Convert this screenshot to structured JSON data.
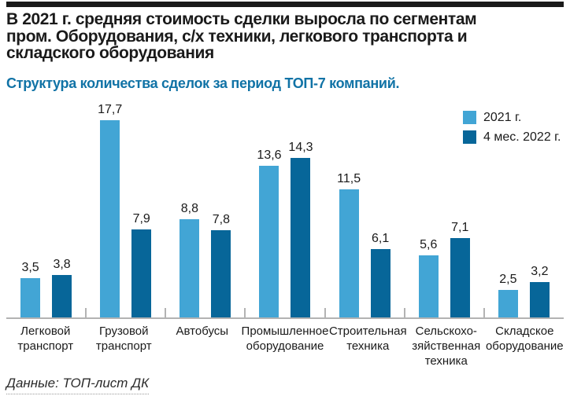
{
  "header": {
    "title_lines": [
      "В 2021 г. средняя стоимость сделки выросла по сегментам",
      "пром. Оборудования, с/х техники, легкового транспорта и",
      "складского оборудования"
    ],
    "subtitle": "Структура количества сделок за период ТОП-7 компаний."
  },
  "legend": {
    "items": [
      {
        "label": "2021 г.",
        "color": "#42a5d5"
      },
      {
        "label": "4 мес. 2022 г.",
        "color": "#076699"
      }
    ]
  },
  "footer": {
    "source": "Данные: ТОП-лист ДК"
  },
  "colors": {
    "series_2021": "#42a5d5",
    "series_2022": "#076699",
    "subtitle_accent": "#1173a6",
    "axis": "#b3b3b3",
    "text": "#1a1a1a"
  },
  "chart_data": {
    "type": "bar",
    "title": "В 2021 г. средняя стоимость сделки выросла по сегментам пром. Оборудования, с/х техники, легкового транспорта и складского оборудования",
    "subtitle": "Структура количества сделок за период ТОП-7 компаний.",
    "categories": [
      "Легковой транспорт",
      "Грузовой транспорт",
      "Автобусы",
      "Промышленное оборудование",
      "Строительная техника",
      "Сельскохозяйственная техника",
      "Складское оборудование"
    ],
    "categories_lines": [
      [
        "Легковой",
        "транспорт"
      ],
      [
        "Грузовой",
        "транспорт"
      ],
      [
        "Автобусы"
      ],
      [
        "Промышленное",
        "оборудование"
      ],
      [
        "Строительная",
        "техника"
      ],
      [
        "Сельскохо-",
        "зяйственная",
        "техника"
      ],
      [
        "Складское",
        "оборудование"
      ]
    ],
    "series": [
      {
        "name": "2021 г.",
        "color": "#42a5d5",
        "values": [
          3.5,
          17.7,
          8.8,
          13.6,
          11.5,
          5.6,
          2.5
        ],
        "labels": [
          "3,5",
          "17,7",
          "8,8",
          "13,6",
          "11,5",
          "5,6",
          "2,5"
        ]
      },
      {
        "name": "4 мес. 2022 г.",
        "color": "#076699",
        "values": [
          3.8,
          7.9,
          7.8,
          14.3,
          6.1,
          7.1,
          3.2
        ],
        "labels": [
          "3,8",
          "7,9",
          "7,8",
          "14,3",
          "6,1",
          "7,1",
          "3,2"
        ]
      }
    ],
    "xlabel": "",
    "ylabel": "",
    "ylim": [
      0,
      19
    ],
    "grid": false,
    "y_axis_visible": false,
    "legend_position": "top-right",
    "value_labels": "above-bars, decimal comma",
    "source": "Данные: ТОП-лист ДК"
  }
}
